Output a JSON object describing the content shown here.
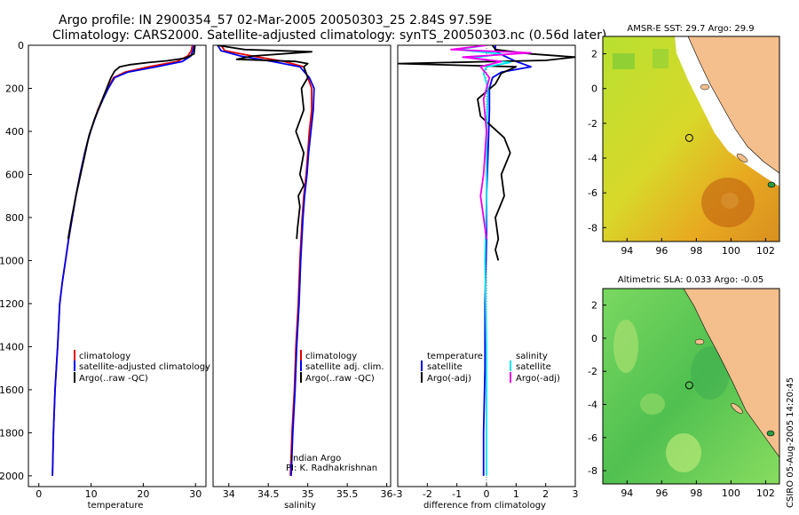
{
  "title": {
    "line1": "Argo profile: IN 2900354_57 02-Mar-2005 20050303_25 2.84S 97.59E",
    "line2": "Climatology: CARS2000. Satellite-adjusted climatology: synTS_20050303.nc (0.56d later)"
  },
  "credit": {
    "line1": "Indian Argo",
    "line2": "PI: K. Radhakrishnan"
  },
  "side_stamp": "CSIRO 05-Aug-2005 14:20:45",
  "colors": {
    "climatology": "#e00000",
    "satellite": "#0000ee",
    "argo": "#000000",
    "sat_salinity": "#00e5ee",
    "argo_salinity": "#ee00ee",
    "land": "#f4bf8c"
  },
  "chart_data": [
    {
      "type": "line",
      "id": "temperature",
      "xlabel": "temperature",
      "xlim": [
        -2,
        32
      ],
      "ylim": [
        0,
        2050
      ],
      "y_inverted": true,
      "xticks": [
        0,
        10,
        20,
        30
      ],
      "yticks": [
        0,
        200,
        400,
        600,
        800,
        1000,
        1200,
        1400,
        1600,
        1800,
        2000
      ],
      "legend": [
        "climatology",
        "satellite-adjusted climatology",
        "Argo(..raw -QC)"
      ],
      "series": [
        {
          "name": "climatology",
          "color": "#e00000",
          "x": [
            29.4,
            29.2,
            28.5,
            26.5,
            21.0,
            16.5,
            14.3,
            13.2,
            12.2,
            11.3,
            10.6,
            9.9,
            9.3,
            8.8,
            7.9,
            7.1,
            6.4,
            5.7,
            5.1,
            4.5,
            4.0,
            3.6,
            3.1,
            2.8,
            2.6
          ],
          "y": [
            0,
            25,
            50,
            75,
            100,
            125,
            150,
            200,
            250,
            300,
            350,
            400,
            450,
            500,
            600,
            700,
            800,
            900,
            1000,
            1100,
            1200,
            1400,
            1600,
            1800,
            2000
          ]
        },
        {
          "name": "satellite-adjusted climatology",
          "color": "#0000ee",
          "x": [
            29.7,
            29.5,
            29.1,
            27.5,
            22.5,
            17.0,
            14.5,
            13.3,
            12.3,
            11.4,
            10.6,
            9.9,
            9.3,
            8.8,
            7.9,
            7.1,
            6.4,
            5.7,
            5.1,
            4.5,
            4.0,
            3.6,
            3.1,
            2.8,
            2.6
          ],
          "y": [
            0,
            25,
            50,
            75,
            100,
            125,
            150,
            200,
            250,
            300,
            350,
            400,
            450,
            500,
            600,
            700,
            800,
            900,
            1000,
            1100,
            1200,
            1400,
            1600,
            1800,
            2000
          ]
        },
        {
          "name": "Argo(..raw -QC)",
          "color": "#000000",
          "x": [
            29.9,
            29.8,
            29.7,
            28.0,
            24.5,
            21.0,
            17.5,
            15.5,
            14.5,
            13.8,
            13.0,
            12.0,
            10.7,
            9.6,
            8.9,
            8.0,
            7.1,
            6.3,
            5.6
          ],
          "y": [
            2,
            20,
            40,
            60,
            72,
            80,
            90,
            100,
            120,
            150,
            200,
            260,
            340,
            420,
            500,
            600,
            700,
            800,
            900
          ]
        }
      ]
    },
    {
      "type": "line",
      "id": "salinity",
      "xlabel": "salinity",
      "xlim": [
        33.8,
        36.05
      ],
      "ylim": [
        0,
        2050
      ],
      "y_inverted": true,
      "xticks": [
        34,
        34.5,
        35,
        35.5,
        36
      ],
      "legend": [
        "climatology",
        "satellite adj. clim.",
        "Argo(..raw -QC)"
      ],
      "series": [
        {
          "name": "climatology",
          "color": "#e00000",
          "x": [
            33.9,
            33.95,
            34.3,
            34.7,
            34.95,
            35.0,
            35.05,
            35.05,
            35.02,
            35.0,
            34.98,
            34.95,
            34.93,
            34.9,
            34.88,
            34.85,
            34.83,
            34.8,
            34.78
          ],
          "y": [
            0,
            25,
            50,
            75,
            100,
            150,
            200,
            300,
            400,
            500,
            600,
            700,
            800,
            1000,
            1200,
            1400,
            1600,
            1800,
            2000
          ]
        },
        {
          "name": "satellite adj. clim.",
          "color": "#0000ee",
          "x": [
            33.86,
            33.9,
            34.15,
            34.55,
            34.9,
            35.02,
            35.08,
            35.07,
            35.04,
            35.01,
            34.99,
            34.96,
            34.94,
            34.91,
            34.89,
            34.86,
            34.84,
            34.81,
            34.79
          ],
          "y": [
            0,
            25,
            50,
            75,
            100,
            150,
            200,
            300,
            400,
            500,
            600,
            700,
            800,
            1000,
            1200,
            1400,
            1600,
            1800,
            2000
          ]
        },
        {
          "name": "Argo(..raw -QC)",
          "color": "#000000",
          "x": [
            33.85,
            34.2,
            35.05,
            34.3,
            34.1,
            34.85,
            35.0,
            34.95,
            35.0,
            34.92,
            34.95,
            34.85,
            34.95,
            34.9,
            34.95,
            34.88,
            34.9,
            34.87,
            34.86
          ],
          "y": [
            0,
            20,
            30,
            50,
            65,
            75,
            85,
            100,
            150,
            200,
            300,
            400,
            500,
            600,
            650,
            700,
            750,
            850,
            900
          ]
        }
      ]
    },
    {
      "type": "line",
      "id": "difference",
      "xlabel": "difference from climatology",
      "xlim": [
        -3,
        3
      ],
      "ylim": [
        0,
        2050
      ],
      "y_inverted": true,
      "xticks": [
        -3,
        -2,
        -1,
        0,
        1,
        2,
        3
      ],
      "legend_left": [
        "temperature",
        "satellite",
        "Argo(-adj)"
      ],
      "legend_right": [
        "salinity",
        "satellite",
        "Argo(-adj)"
      ],
      "series": [
        {
          "name": "temperature satellite",
          "color": "#0000ee",
          "x": [
            0.3,
            0.3,
            0.6,
            1.0,
            1.5,
            0.5,
            0.2,
            0.1,
            0.1,
            0.05,
            0.0,
            0.0,
            -0.05,
            -0.05,
            -0.1,
            -0.1
          ],
          "y": [
            0,
            25,
            50,
            75,
            100,
            125,
            150,
            200,
            300,
            500,
            700,
            900,
            1200,
            1500,
            1800,
            2000
          ]
        },
        {
          "name": "temperature Argo(-adj)",
          "color": "#000000",
          "x": [
            0.2,
            0.3,
            1.5,
            3.0,
            2.0,
            -3.0,
            1.0,
            0.5,
            0.3,
            -0.3,
            -0.2,
            0.2,
            0.6,
            0.8,
            0.5,
            0.6,
            0.3,
            0.4,
            0.3,
            0.4
          ],
          "y": [
            0,
            20,
            40,
            55,
            70,
            85,
            100,
            130,
            180,
            250,
            330,
            380,
            430,
            500,
            600,
            700,
            800,
            900,
            950,
            1000
          ]
        },
        {
          "name": "salinity satellite",
          "color": "#00e5ee",
          "x": [
            0.0,
            -1.0,
            0.5,
            -0.5,
            0.8,
            0.0,
            -0.1,
            0.05,
            0.0,
            0.0,
            -0.05,
            0.0,
            0.0,
            0.0
          ],
          "y": [
            0,
            20,
            40,
            60,
            80,
            100,
            130,
            200,
            400,
            700,
            1000,
            1400,
            1800,
            2000
          ]
        },
        {
          "name": "salinity Argo(-adj)",
          "color": "#ee00ee",
          "x": [
            0.0,
            -1.2,
            1.5,
            -0.8,
            0.5,
            -0.2,
            0.1,
            -0.1,
            0.0,
            -0.05,
            -0.1,
            -0.2,
            -0.1,
            0.0
          ],
          "y": [
            0,
            20,
            35,
            55,
            75,
            100,
            150,
            250,
            400,
            500,
            600,
            700,
            800,
            900
          ]
        }
      ]
    },
    {
      "type": "heatmap",
      "id": "sst-map",
      "title": "AMSR-E SST: 29.7 Argo: 29.9",
      "xlim": [
        92.6,
        102.8
      ],
      "ylim": [
        -8.8,
        3.0
      ],
      "xticks": [
        94,
        96,
        98,
        100,
        102
      ],
      "yticks": [
        2,
        0,
        -2,
        -4,
        -6,
        -8
      ],
      "argo_point": [
        97.59,
        -2.84
      ]
    },
    {
      "type": "heatmap",
      "id": "sla-map",
      "title": "Altimetric SLA: 0.033 Argo: -0.05",
      "xlim": [
        92.6,
        102.8
      ],
      "ylim": [
        -8.8,
        3.0
      ],
      "xticks": [
        94,
        96,
        98,
        100,
        102
      ],
      "yticks": [
        2,
        0,
        -2,
        -4,
        -6,
        -8
      ],
      "argo_point": [
        97.59,
        -2.84
      ]
    }
  ]
}
